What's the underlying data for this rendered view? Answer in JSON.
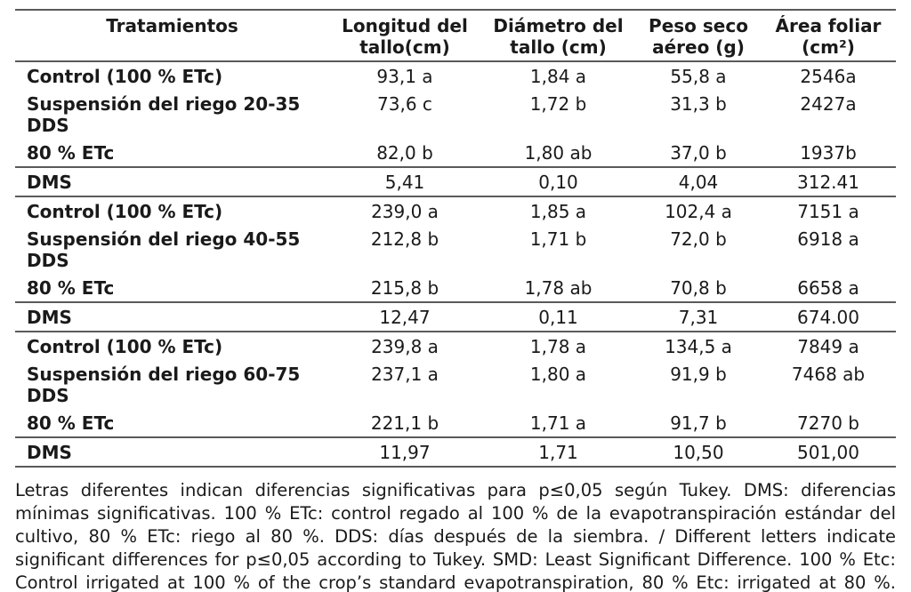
{
  "table": {
    "headers": [
      "Tratamientos",
      "Longitud del tallo(cm)",
      "Diámetro del tallo (cm)",
      "Peso seco aéreo (g)",
      "Área foliar (cm²)"
    ],
    "rows": [
      {
        "treatment": "Control (100 % ETc)",
        "stem_length": "93,1 a",
        "stem_diameter": "1,84 a",
        "dry_weight": "55,8 a",
        "leaf_area": "2546a"
      },
      {
        "treatment": "Suspensión del riego 20-35 DDS",
        "stem_length": "73,6 c",
        "stem_diameter": "1,72 b",
        "dry_weight": "31,3 b",
        "leaf_area": "2427a"
      },
      {
        "treatment": "80 % ETc",
        "stem_length": "82,0 b",
        "stem_diameter": "1,80 ab",
        "dry_weight": "37,0 b",
        "leaf_area": "1937b"
      },
      {
        "treatment": "DMS",
        "stem_length": "5,41",
        "stem_diameter": "0,10",
        "dry_weight": "4,04",
        "leaf_area": "312.41"
      },
      {
        "treatment": "Control (100 % ETc)",
        "stem_length": "239,0 a",
        "stem_diameter": "1,85 a",
        "dry_weight": "102,4 a",
        "leaf_area": "7151 a"
      },
      {
        "treatment": "Suspensión del riego 40-55 DDS",
        "stem_length": "212,8 b",
        "stem_diameter": "1,71 b",
        "dry_weight": "72,0 b",
        "leaf_area": "6918 a"
      },
      {
        "treatment": "80 % ETc",
        "stem_length": "215,8 b",
        "stem_diameter": "1,78 ab",
        "dry_weight": "70,8 b",
        "leaf_area": "6658 a"
      },
      {
        "treatment": "DMS",
        "stem_length": "12,47",
        "stem_diameter": "0,11",
        "dry_weight": "7,31",
        "leaf_area": "674.00"
      },
      {
        "treatment": "Control (100 % ETc)",
        "stem_length": "239,8 a",
        "stem_diameter": "1,78 a",
        "dry_weight": "134,5 a",
        "leaf_area": "7849 a"
      },
      {
        "treatment": "Suspensión del riego 60-75 DDS",
        "stem_length": "237,1 a",
        "stem_diameter": "1,80 a",
        "dry_weight": "91,9 b",
        "leaf_area": "7468 ab"
      },
      {
        "treatment": "80 % ETc",
        "stem_length": "221,1 b",
        "stem_diameter": "1,71 a",
        "dry_weight": "91,7 b",
        "leaf_area": "7270 b"
      },
      {
        "treatment": "DMS",
        "stem_length": "11,97",
        "stem_diameter": "1,71",
        "dry_weight": "10,50",
        "leaf_area": "501,00"
      }
    ]
  },
  "footnote": "Letras diferentes indican diferencias significativas para p≤0,05 según Tukey. DMS: diferencias mínimas significativas. 100 % ETc: control regado al 100 % de la evapotranspiración estándar del cultivo, 80 % ETc: riego al 80 %. DDS: días después de la siembra. / Different letters indicate significant differences for p≤0,05 according to Tukey. SMD: Least Significant Difference. 100 % Etc: Control irrigated at 100 % of the crop’s standard evapotranspiration, 80 % Etc: irrigated at 80 %. DDS: days after planting.",
  "colors": {
    "text": "#1a1a1a",
    "rule": "#5a5a5a",
    "background": "#ffffff"
  }
}
